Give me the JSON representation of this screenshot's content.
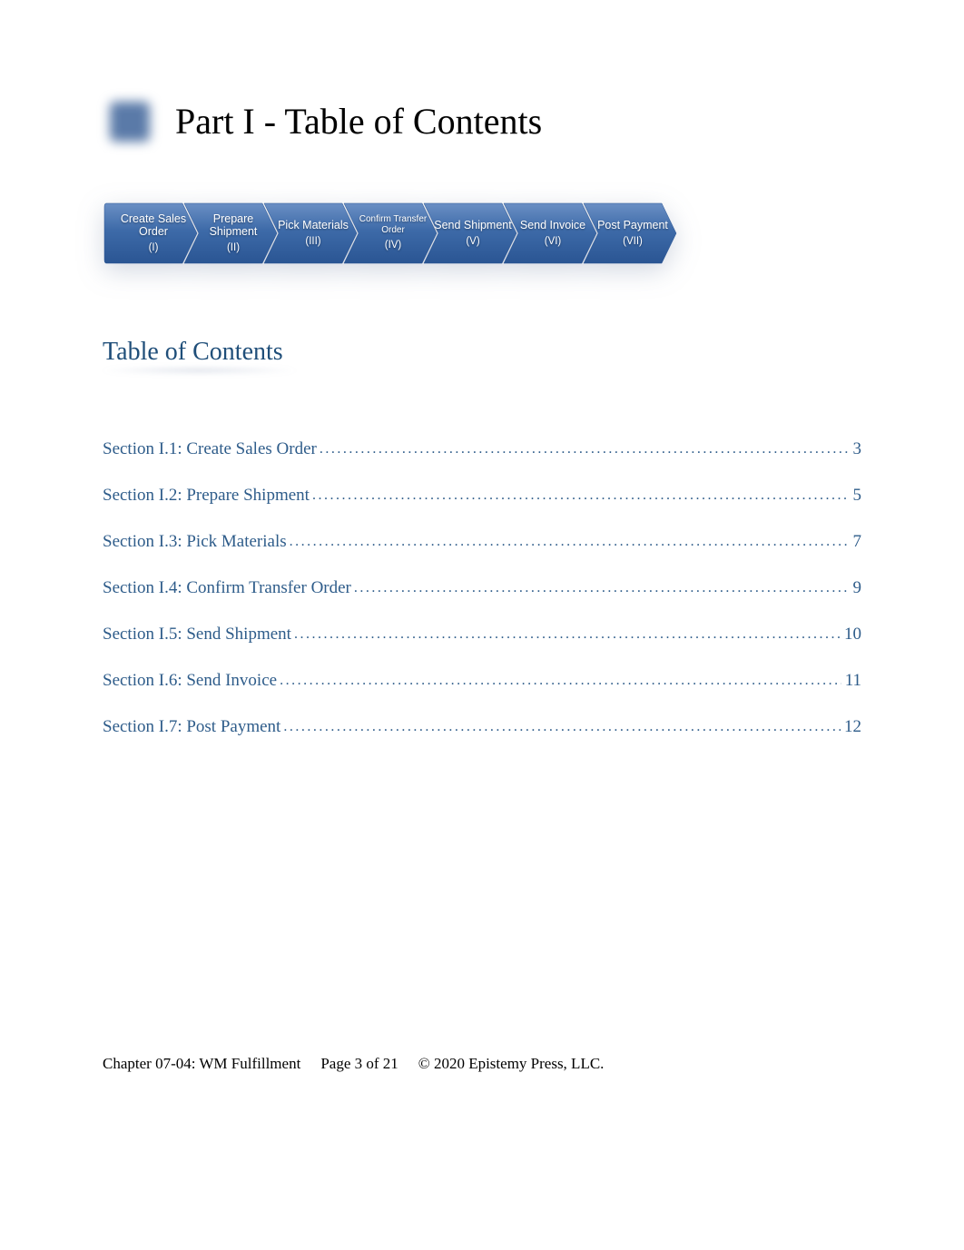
{
  "title": "Part I - Table of Contents",
  "chevron_colors": {
    "fill_top": "#6a8fc4",
    "fill_mid": "#3d6aa8",
    "fill_bot": "#2a5593",
    "stroke": "#2a5593"
  },
  "chevrons": [
    {
      "label": "Create Sales Order",
      "num": "(I)",
      "small": false
    },
    {
      "label": "Prepare Shipment",
      "num": "(II)",
      "small": false
    },
    {
      "label": "Pick Materials",
      "num": "(III)",
      "small": false
    },
    {
      "label": "Confirm Transfer Order",
      "num": "(IV)",
      "small": true
    },
    {
      "label": "Send Shipment",
      "num": "(V)",
      "small": false
    },
    {
      "label": "Send Invoice",
      "num": "(VI)",
      "small": false
    },
    {
      "label": "Post Payment",
      "num": "(VII)",
      "small": false
    }
  ],
  "toc_heading": "Table of Contents",
  "toc_link_color": "#2e5c8a",
  "toc": [
    {
      "title": "Section I.1: Create Sales Order",
      "page": "3"
    },
    {
      "title": "Section I.2: Prepare Shipment",
      "page": "5"
    },
    {
      "title": "Section I.3: Pick Materials",
      "page": "7"
    },
    {
      "title": "Section I.4: Confirm Transfer Order",
      "page": "9"
    },
    {
      "title": "Section I.5: Send Shipment",
      "page": "10"
    },
    {
      "title": "Section I.6: Send Invoice",
      "page": "11"
    },
    {
      "title": "Section I.7: Post Payment",
      "page": "12"
    }
  ],
  "footer": {
    "chapter": "Chapter 07-04: WM Fulfillment",
    "page": "Page 3 of 21",
    "copyright": "© 2020 Epistemy Press, LLC."
  }
}
